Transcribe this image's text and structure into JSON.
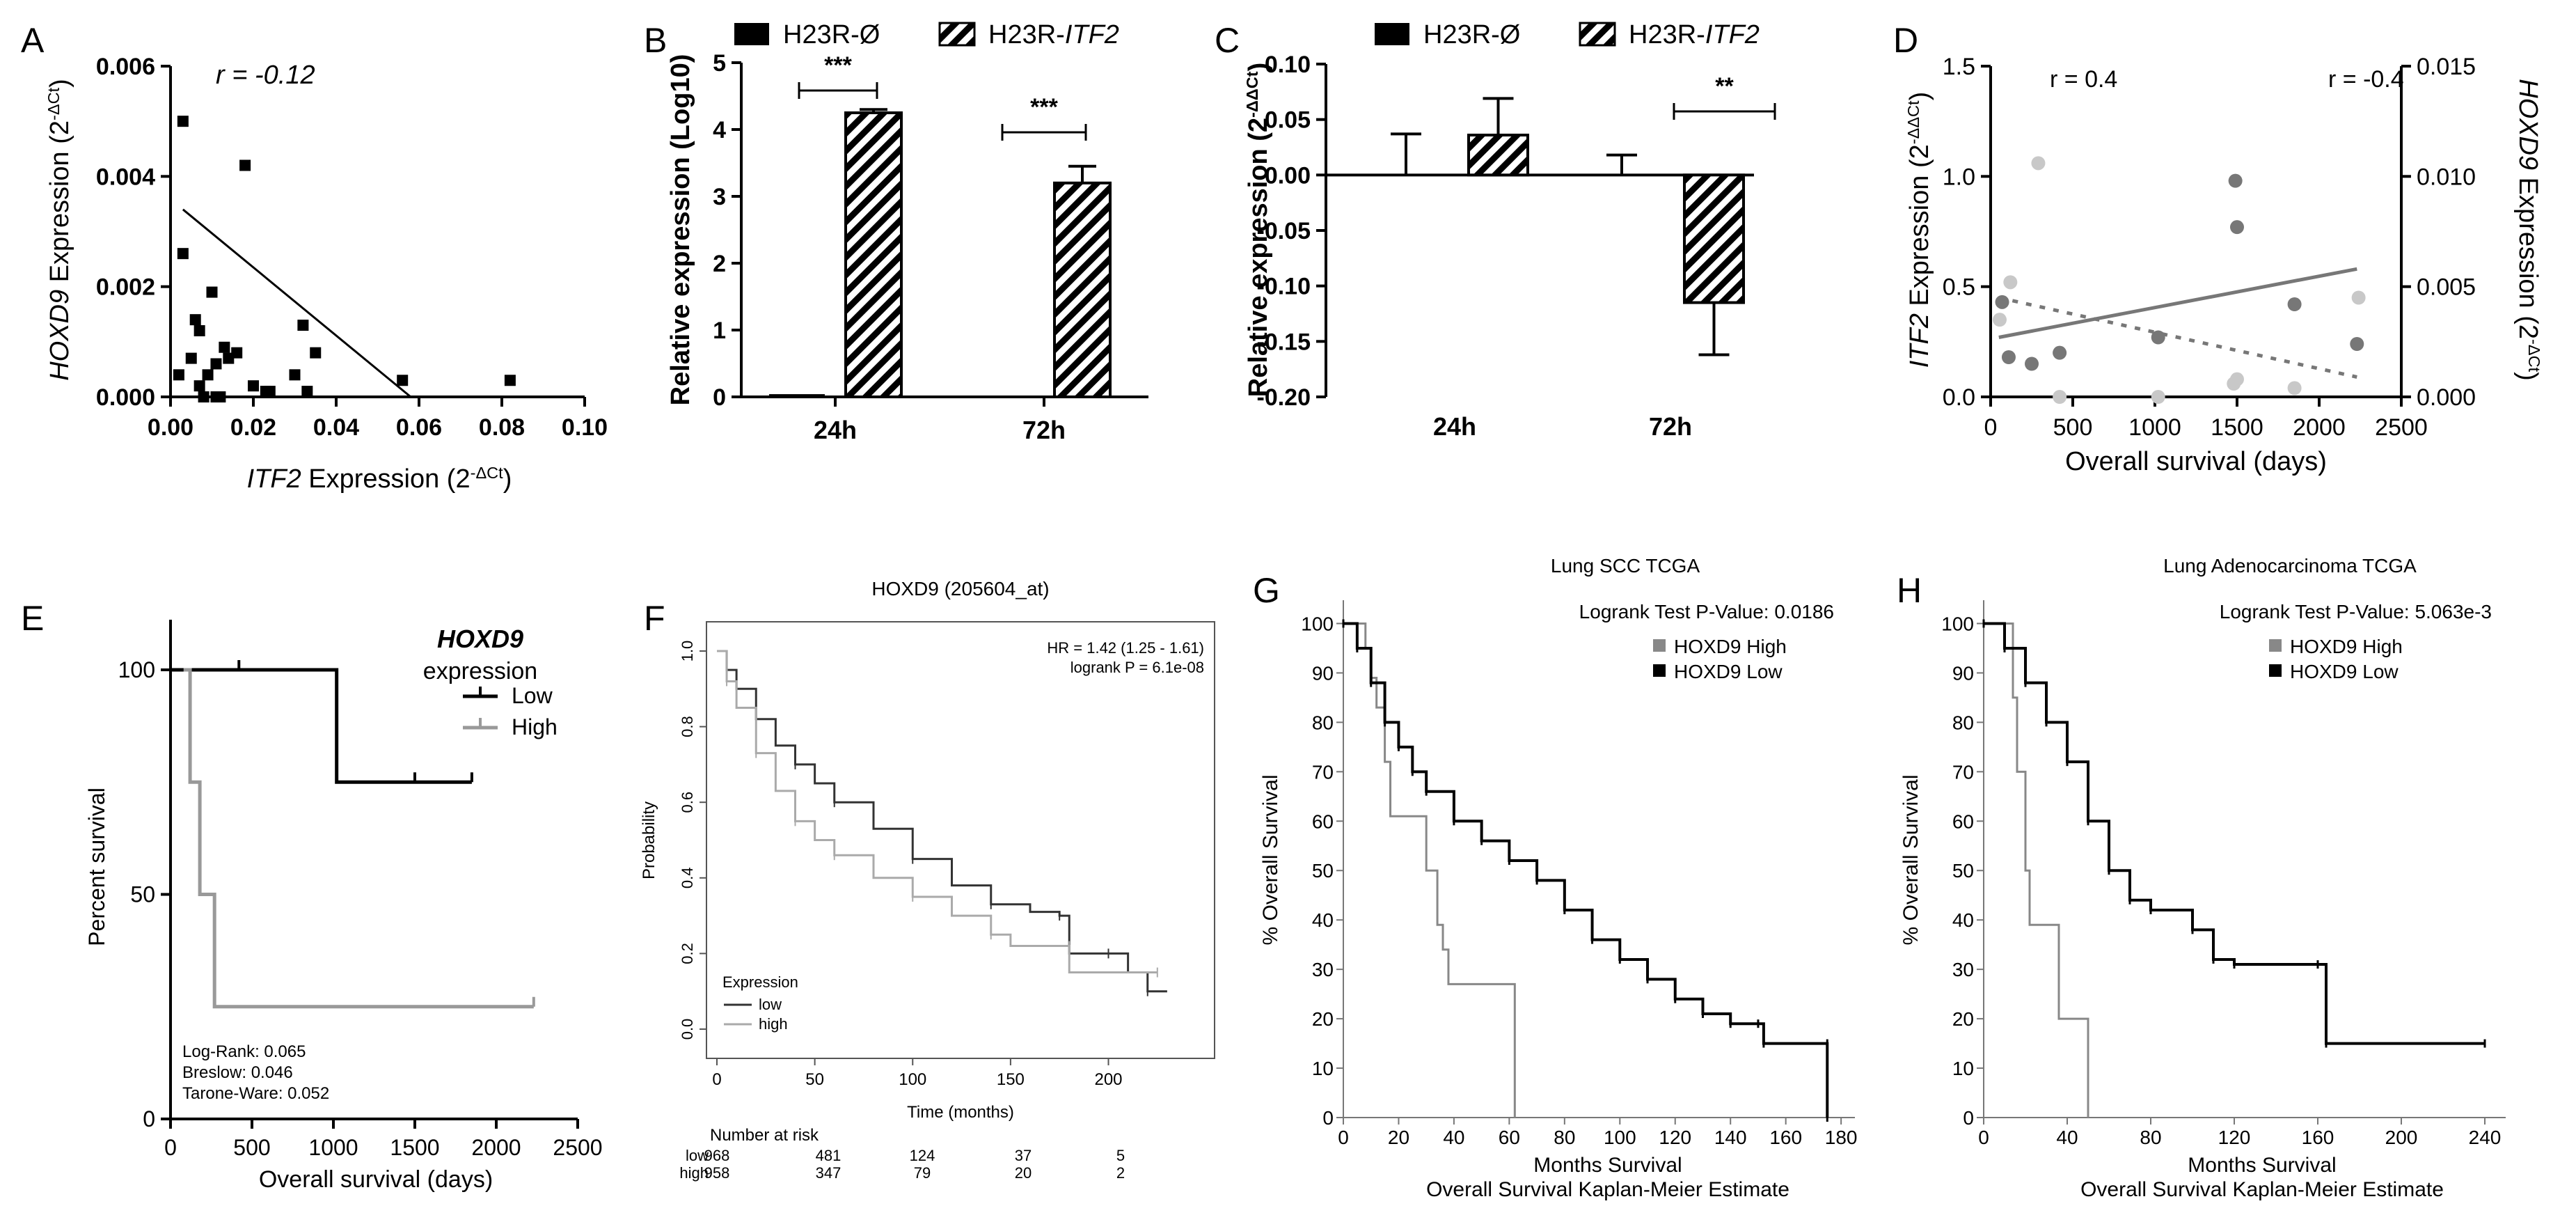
{
  "figure": {
    "panels": [
      "A",
      "B",
      "C",
      "D",
      "E",
      "F",
      "G",
      "H"
    ]
  },
  "chart_data": [
    {
      "id": "A",
      "type": "scatter",
      "title": "",
      "xlabel_italic": "ITF2",
      "xlabel": " Expression (2",
      "xlabel_sup": "-ΔCt",
      "xlabel_end": ")",
      "ylabel_italic": "HOXD9",
      "ylabel": " Expression (2",
      "ylabel_sup": "-ΔCt",
      "ylabel_end": ")",
      "annotation": "r = -0.12",
      "xlim": [
        0,
        0.1
      ],
      "ylim": [
        0,
        0.006
      ],
      "xticks": [
        "0.00",
        "0.02",
        "0.04",
        "0.06",
        "0.08",
        "0.10"
      ],
      "yticks": [
        "0.000",
        "0.002",
        "0.004",
        "0.006"
      ],
      "points": [
        [
          0.003,
          0.005
        ],
        [
          0.003,
          0.0026
        ],
        [
          0.002,
          0.0004
        ],
        [
          0.005,
          0.0007
        ],
        [
          0.006,
          0.0014
        ],
        [
          0.007,
          0.0012
        ],
        [
          0.007,
          0.0002
        ],
        [
          0.008,
          0.0
        ],
        [
          0.009,
          0.0004
        ],
        [
          0.01,
          0.0019
        ],
        [
          0.011,
          0.0
        ],
        [
          0.011,
          0.0006
        ],
        [
          0.012,
          0.0
        ],
        [
          0.013,
          0.0009
        ],
        [
          0.014,
          0.0007
        ],
        [
          0.016,
          0.0008
        ],
        [
          0.018,
          0.0042
        ],
        [
          0.02,
          0.0002
        ],
        [
          0.023,
          0.0001
        ],
        [
          0.024,
          0.0001
        ],
        [
          0.03,
          0.0004
        ],
        [
          0.032,
          0.0013
        ],
        [
          0.033,
          0.0001
        ],
        [
          0.035,
          0.0008
        ],
        [
          0.056,
          0.0003
        ],
        [
          0.082,
          0.0003
        ]
      ],
      "fit_line": [
        [
          0.003,
          0.0034
        ],
        [
          0.058,
          0.0
        ]
      ]
    },
    {
      "id": "B",
      "type": "bar",
      "categories": [
        "24h",
        "72h"
      ],
      "series": [
        {
          "name": "H23R-Ø",
          "values": [
            0.02,
            0.0
          ]
        },
        {
          "name_plain": "H23R-",
          "name_italic": "ITF2",
          "values": [
            4.25,
            3.2
          ]
        }
      ],
      "errors": [
        0.05,
        0.25
      ],
      "ylabel": "Relative expression (Log10)",
      "ylim": [
        0,
        5
      ],
      "yticks": [
        "0",
        "1",
        "2",
        "3",
        "4",
        "5"
      ],
      "significance": [
        "***",
        "***"
      ]
    },
    {
      "id": "C",
      "type": "bar",
      "categories": [
        "24h",
        "72h"
      ],
      "series": [
        {
          "name": "H23R-Ø",
          "values": [
            0.0,
            0.0
          ],
          "errors": [
            0.037,
            0.018
          ]
        },
        {
          "name_plain": "H23R-",
          "name_italic": "ITF2",
          "values": [
            0.036,
            -0.115
          ],
          "errors": [
            0.033,
            0.047
          ]
        }
      ],
      "ylabel": "Relative expression (2",
      "ylabel_sup": "-ΔΔCt",
      "ylabel_end": ")",
      "ylim": [
        -0.2,
        0.1
      ],
      "yticks": [
        "-0.20",
        "-0.15",
        "-0.10",
        "-0.05",
        "0.00",
        "0.05",
        "0.10"
      ],
      "significance": [
        "**"
      ]
    },
    {
      "id": "D",
      "type": "scatter",
      "xlabel": "Overall survival (days)",
      "ylabel_left_italic": "ITF2",
      "ylabel_left": " Expression (2",
      "ylabel_left_sup": "-ΔΔCt",
      "ylabel_left_end": ")",
      "ylabel_right_italic": "HOXD9",
      "ylabel_right": " Expression (2",
      "ylabel_right_sup": "-ΔCt",
      "ylabel_right_end": ")",
      "xlim": [
        0,
        2500
      ],
      "ylim_left": [
        0,
        1.5
      ],
      "ylim_right": [
        0,
        0.015
      ],
      "xticks": [
        "0",
        "500",
        "1000",
        "1500",
        "2000",
        "2500"
      ],
      "yticks_left": [
        "0.0",
        "0.5",
        "1.0",
        "1.5"
      ],
      "yticks_right": [
        "0.000",
        "0.005",
        "0.010",
        "0.015"
      ],
      "annotation_left": "r = 0.4",
      "annotation_right": "r = -0.4",
      "series": [
        {
          "name": "ITF2",
          "color": "#777777",
          "points": [
            [
              70,
              0.43
            ],
            [
              110,
              0.18
            ],
            [
              250,
              0.15
            ],
            [
              420,
              0.2
            ],
            [
              1020,
              0.27
            ],
            [
              1490,
              0.98
            ],
            [
              1500,
              0.77
            ],
            [
              1850,
              0.42
            ],
            [
              2230,
              0.24
            ]
          ],
          "fit": [
            [
              50,
              0.27
            ],
            [
              2230,
              0.58
            ]
          ]
        },
        {
          "name": "HOXD9",
          "color": "#c8c8c8",
          "points": [
            [
              55,
              0.0035
            ],
            [
              120,
              0.0052
            ],
            [
              290,
              0.0106
            ],
            [
              420,
              0.0
            ],
            [
              1020,
              0.0
            ],
            [
              1480,
              0.0006
            ],
            [
              1500,
              0.0008
            ],
            [
              1850,
              0.0004
            ],
            [
              2240,
              0.0045
            ]
          ],
          "fit": [
            [
              50,
              0.0045
            ],
            [
              2230,
              0.0009
            ]
          ]
        }
      ]
    },
    {
      "id": "E",
      "type": "line",
      "xlabel": "Overall survival (days)",
      "ylabel": "Percent survival",
      "xlim": [
        0,
        2500
      ],
      "ylim": [
        0,
        100
      ],
      "xticks": [
        "0",
        "500",
        "1000",
        "1500",
        "2000",
        "2500"
      ],
      "yticks": [
        "0",
        "50",
        "100"
      ],
      "legend_title_italic": "HOXD9",
      "legend_title": "expression",
      "series": [
        {
          "name": "Low",
          "color": "#000000",
          "steps": [
            [
              0,
              100
            ],
            [
              1020,
              100
            ],
            [
              1020,
              75
            ],
            [
              1850,
              75
            ]
          ],
          "censors": [
            [
              420,
              100
            ],
            [
              1500,
              75
            ],
            [
              1850,
              75
            ]
          ]
        },
        {
          "name": "High",
          "color": "#999999",
          "steps": [
            [
              80,
              100
            ],
            [
              80,
              100
            ],
            [
              120,
              100
            ],
            [
              120,
              75
            ],
            [
              180,
              75
            ],
            [
              180,
              50
            ],
            [
              270,
              50
            ],
            [
              270,
              25
            ],
            [
              2230,
              25
            ]
          ],
          "censors": [
            [
              2230,
              25
            ]
          ]
        }
      ],
      "stats": [
        "Log-Rank: 0.065",
        "Breslow: 0.046",
        "Tarone-Ware: 0.052"
      ]
    },
    {
      "id": "F",
      "type": "line",
      "title": "HOXD9 (205604_at)",
      "xlabel": "Time (months)",
      "ylabel": "Probability",
      "xlim": [
        0,
        240
      ],
      "ylim": [
        0,
        1.0
      ],
      "xticks": [
        "0",
        "50",
        "100",
        "150",
        "200"
      ],
      "yticks": [
        "0.0",
        "0.2",
        "0.4",
        "0.6",
        "0.8",
        "1.0"
      ],
      "hr_text": "HR = 1.42 (1.25 - 1.61)",
      "logrank_text": "logrank P = 6.1e-08",
      "legend_title": "Expression",
      "series": [
        {
          "name": "low",
          "color": "#333333",
          "points": [
            [
              0,
              1.0
            ],
            [
              5,
              0.95
            ],
            [
              10,
              0.9
            ],
            [
              20,
              0.82
            ],
            [
              30,
              0.75
            ],
            [
              40,
              0.7
            ],
            [
              50,
              0.65
            ],
            [
              60,
              0.6
            ],
            [
              80,
              0.53
            ],
            [
              100,
              0.45
            ],
            [
              120,
              0.38
            ],
            [
              140,
              0.33
            ],
            [
              160,
              0.31
            ],
            [
              175,
              0.3
            ],
            [
              180,
              0.2
            ],
            [
              200,
              0.2
            ],
            [
              210,
              0.15
            ],
            [
              220,
              0.1
            ],
            [
              230,
              0.1
            ]
          ]
        },
        {
          "name": "high",
          "color": "#aaaaaa",
          "points": [
            [
              0,
              1.0
            ],
            [
              5,
              0.92
            ],
            [
              10,
              0.85
            ],
            [
              20,
              0.73
            ],
            [
              30,
              0.63
            ],
            [
              40,
              0.55
            ],
            [
              50,
              0.5
            ],
            [
              60,
              0.46
            ],
            [
              80,
              0.4
            ],
            [
              100,
              0.35
            ],
            [
              120,
              0.3
            ],
            [
              140,
              0.25
            ],
            [
              150,
              0.22
            ],
            [
              180,
              0.22
            ],
            [
              180,
              0.15
            ],
            [
              225,
              0.15
            ]
          ]
        }
      ],
      "risk_header": "Number at risk",
      "risk_rows": [
        {
          "name": "low",
          "values": [
            "968",
            "481",
            "124",
            "37",
            "5"
          ]
        },
        {
          "name": "high",
          "values": [
            "958",
            "347",
            "79",
            "20",
            "2"
          ]
        }
      ]
    },
    {
      "id": "G",
      "type": "line",
      "title": "Lung SCC TCGA",
      "pvalue": "Logrank Test P-Value: 0.0186",
      "xlabel": "Months Survival",
      "caption": "Overall Survival Kaplan-Meier Estimate",
      "ylabel": "% Overall Survival",
      "xlim": [
        0,
        185
      ],
      "ylim": [
        0,
        105
      ],
      "xticks": [
        "0",
        "20",
        "40",
        "60",
        "80",
        "100",
        "120",
        "140",
        "160",
        "180"
      ],
      "yticks": [
        "0",
        "10",
        "20",
        "30",
        "40",
        "50",
        "60",
        "70",
        "80",
        "90",
        "100"
      ],
      "series": [
        {
          "name": "HOXD9 High",
          "color": "#888888",
          "points": [
            [
              0,
              100
            ],
            [
              8,
              100
            ],
            [
              8,
              95
            ],
            [
              10,
              89
            ],
            [
              12,
              83
            ],
            [
              15,
              72
            ],
            [
              17,
              61
            ],
            [
              25,
              61
            ],
            [
              30,
              50
            ],
            [
              34,
              39
            ],
            [
              36,
              34
            ],
            [
              38,
              27
            ],
            [
              62,
              27
            ],
            [
              62,
              0
            ]
          ]
        },
        {
          "name": "HOXD9 Low",
          "color": "#000000",
          "points": [
            [
              0,
              100
            ],
            [
              5,
              95
            ],
            [
              10,
              88
            ],
            [
              15,
              80
            ],
            [
              20,
              75
            ],
            [
              25,
              70
            ],
            [
              30,
              66
            ],
            [
              40,
              60
            ],
            [
              50,
              56
            ],
            [
              60,
              52
            ],
            [
              70,
              48
            ],
            [
              80,
              42
            ],
            [
              90,
              36
            ],
            [
              100,
              32
            ],
            [
              110,
              28
            ],
            [
              120,
              24
            ],
            [
              130,
              21
            ],
            [
              140,
              19
            ],
            [
              150,
              19
            ],
            [
              152,
              15
            ],
            [
              175,
              15
            ],
            [
              175,
              0
            ]
          ]
        }
      ]
    },
    {
      "id": "H",
      "type": "line",
      "title": "Lung Adenocarcinoma TCGA",
      "pvalue": "Logrank Test P-Value: 5.063e-3",
      "xlabel": "Months Survival",
      "caption": "Overall Survival Kaplan-Meier Estimate",
      "ylabel": "% Overall Survival",
      "xlim": [
        0,
        250
      ],
      "ylim": [
        0,
        105
      ],
      "xticks": [
        "0",
        "40",
        "80",
        "120",
        "160",
        "200",
        "240"
      ],
      "yticks": [
        "0",
        "10",
        "20",
        "30",
        "40",
        "50",
        "60",
        "70",
        "80",
        "90",
        "100"
      ],
      "series": [
        {
          "name": "HOXD9 High",
          "color": "#888888",
          "points": [
            [
              0,
              100
            ],
            [
              12,
              100
            ],
            [
              14,
              85
            ],
            [
              16,
              70
            ],
            [
              20,
              50
            ],
            [
              22,
              39
            ],
            [
              34,
              39
            ],
            [
              36,
              20
            ],
            [
              48,
              20
            ],
            [
              50,
              0
            ]
          ]
        },
        {
          "name": "HOXD9 Low",
          "color": "#000000",
          "points": [
            [
              0,
              100
            ],
            [
              10,
              95
            ],
            [
              20,
              88
            ],
            [
              30,
              80
            ],
            [
              40,
              72
            ],
            [
              50,
              60
            ],
            [
              60,
              50
            ],
            [
              70,
              44
            ],
            [
              80,
              42
            ],
            [
              100,
              38
            ],
            [
              110,
              32
            ],
            [
              120,
              31
            ],
            [
              160,
              31
            ],
            [
              164,
              15
            ],
            [
              240,
              15
            ]
          ]
        }
      ]
    }
  ]
}
